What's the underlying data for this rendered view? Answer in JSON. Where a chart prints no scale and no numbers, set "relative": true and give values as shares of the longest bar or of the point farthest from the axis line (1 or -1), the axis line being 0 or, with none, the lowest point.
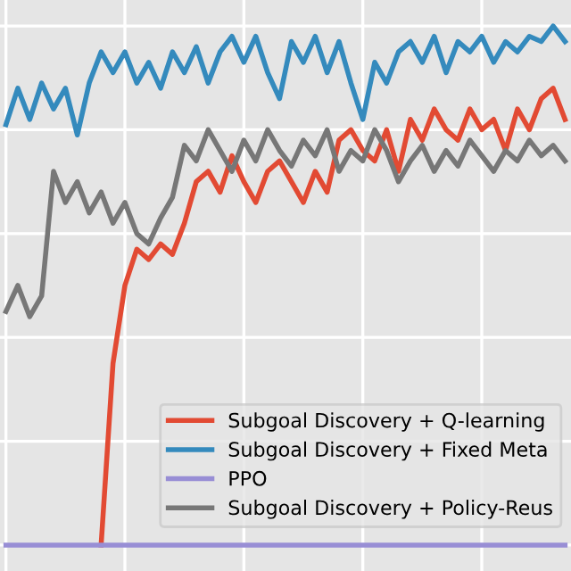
{
  "chart_data": {
    "type": "line",
    "relative": true,
    "grid": true,
    "legend": "bottom right",
    "line_style": "solid",
    "marker": "none",
    "categories": [
      null,
      null,
      null,
      null,
      null,
      null,
      null,
      null,
      null,
      null,
      null,
      null,
      null,
      null,
      null,
      null,
      null,
      null,
      null,
      null,
      null,
      null,
      null,
      null,
      null,
      null,
      null,
      null,
      null,
      null,
      null,
      null,
      null,
      null,
      null,
      null,
      null,
      null,
      null,
      null,
      null,
      null,
      null,
      null,
      null,
      null,
      null,
      null
    ],
    "series": [
      {
        "name": "Subgoal Discovery + Q-learning",
        "color": "#e24a33",
        "values": [
          null,
          null,
          null,
          null,
          null,
          null,
          null,
          null,
          0,
          0.35,
          0.5,
          0.57,
          0.55,
          0.58,
          0.56,
          0.62,
          0.7,
          0.72,
          0.68,
          0.75,
          0.7,
          0.66,
          0.72,
          0.74,
          0.7,
          0.66,
          0.72,
          0.68,
          0.78,
          0.8,
          0.76,
          0.74,
          0.8,
          0.72,
          0.82,
          0.78,
          0.84,
          0.8,
          0.78,
          0.84,
          0.8,
          0.82,
          0.76,
          0.84,
          0.8,
          0.86,
          0.88,
          0.82
        ]
      },
      {
        "name": "Subgoal Discovery + Fixed Meta",
        "color": "#348abd",
        "values": [
          0.81,
          0.88,
          0.82,
          0.89,
          0.84,
          0.88,
          0.79,
          0.89,
          0.95,
          0.91,
          0.95,
          0.89,
          0.93,
          0.88,
          0.95,
          0.91,
          0.96,
          0.89,
          0.95,
          0.98,
          0.93,
          0.98,
          0.91,
          0.86,
          0.97,
          0.93,
          0.98,
          0.91,
          0.97,
          0.89,
          0.82,
          0.93,
          0.89,
          0.95,
          0.97,
          0.93,
          0.98,
          0.91,
          0.97,
          0.95,
          0.98,
          0.93,
          0.97,
          0.95,
          0.98,
          0.97,
          1.0,
          0.97
        ]
      },
      {
        "name": "PPO",
        "color": "#988ed5",
        "values": [
          0,
          0,
          0,
          0,
          0,
          0,
          0,
          0,
          0,
          0,
          0,
          0,
          0,
          0,
          0,
          0,
          0,
          0,
          0,
          0,
          0,
          0,
          0,
          0,
          0,
          0,
          0,
          0,
          0,
          0,
          0,
          0,
          0,
          0,
          0,
          0,
          0,
          0,
          0,
          0,
          0,
          0,
          0,
          0,
          0,
          0,
          0,
          0
        ]
      },
      {
        "name": "Subgoal Discovery + Policy-Reus",
        "color": "#777777",
        "values": [
          0.45,
          0.5,
          0.44,
          0.48,
          0.72,
          0.66,
          0.7,
          0.64,
          0.68,
          0.62,
          0.66,
          0.6,
          0.58,
          0.63,
          0.67,
          0.77,
          0.74,
          0.8,
          0.76,
          0.72,
          0.78,
          0.74,
          0.8,
          0.76,
          0.73,
          0.78,
          0.75,
          0.8,
          0.72,
          0.76,
          0.74,
          0.8,
          0.76,
          0.7,
          0.74,
          0.77,
          0.72,
          0.76,
          0.73,
          0.78,
          0.75,
          0.72,
          0.76,
          0.74,
          0.78,
          0.75,
          0.77,
          0.74
        ]
      }
    ]
  }
}
